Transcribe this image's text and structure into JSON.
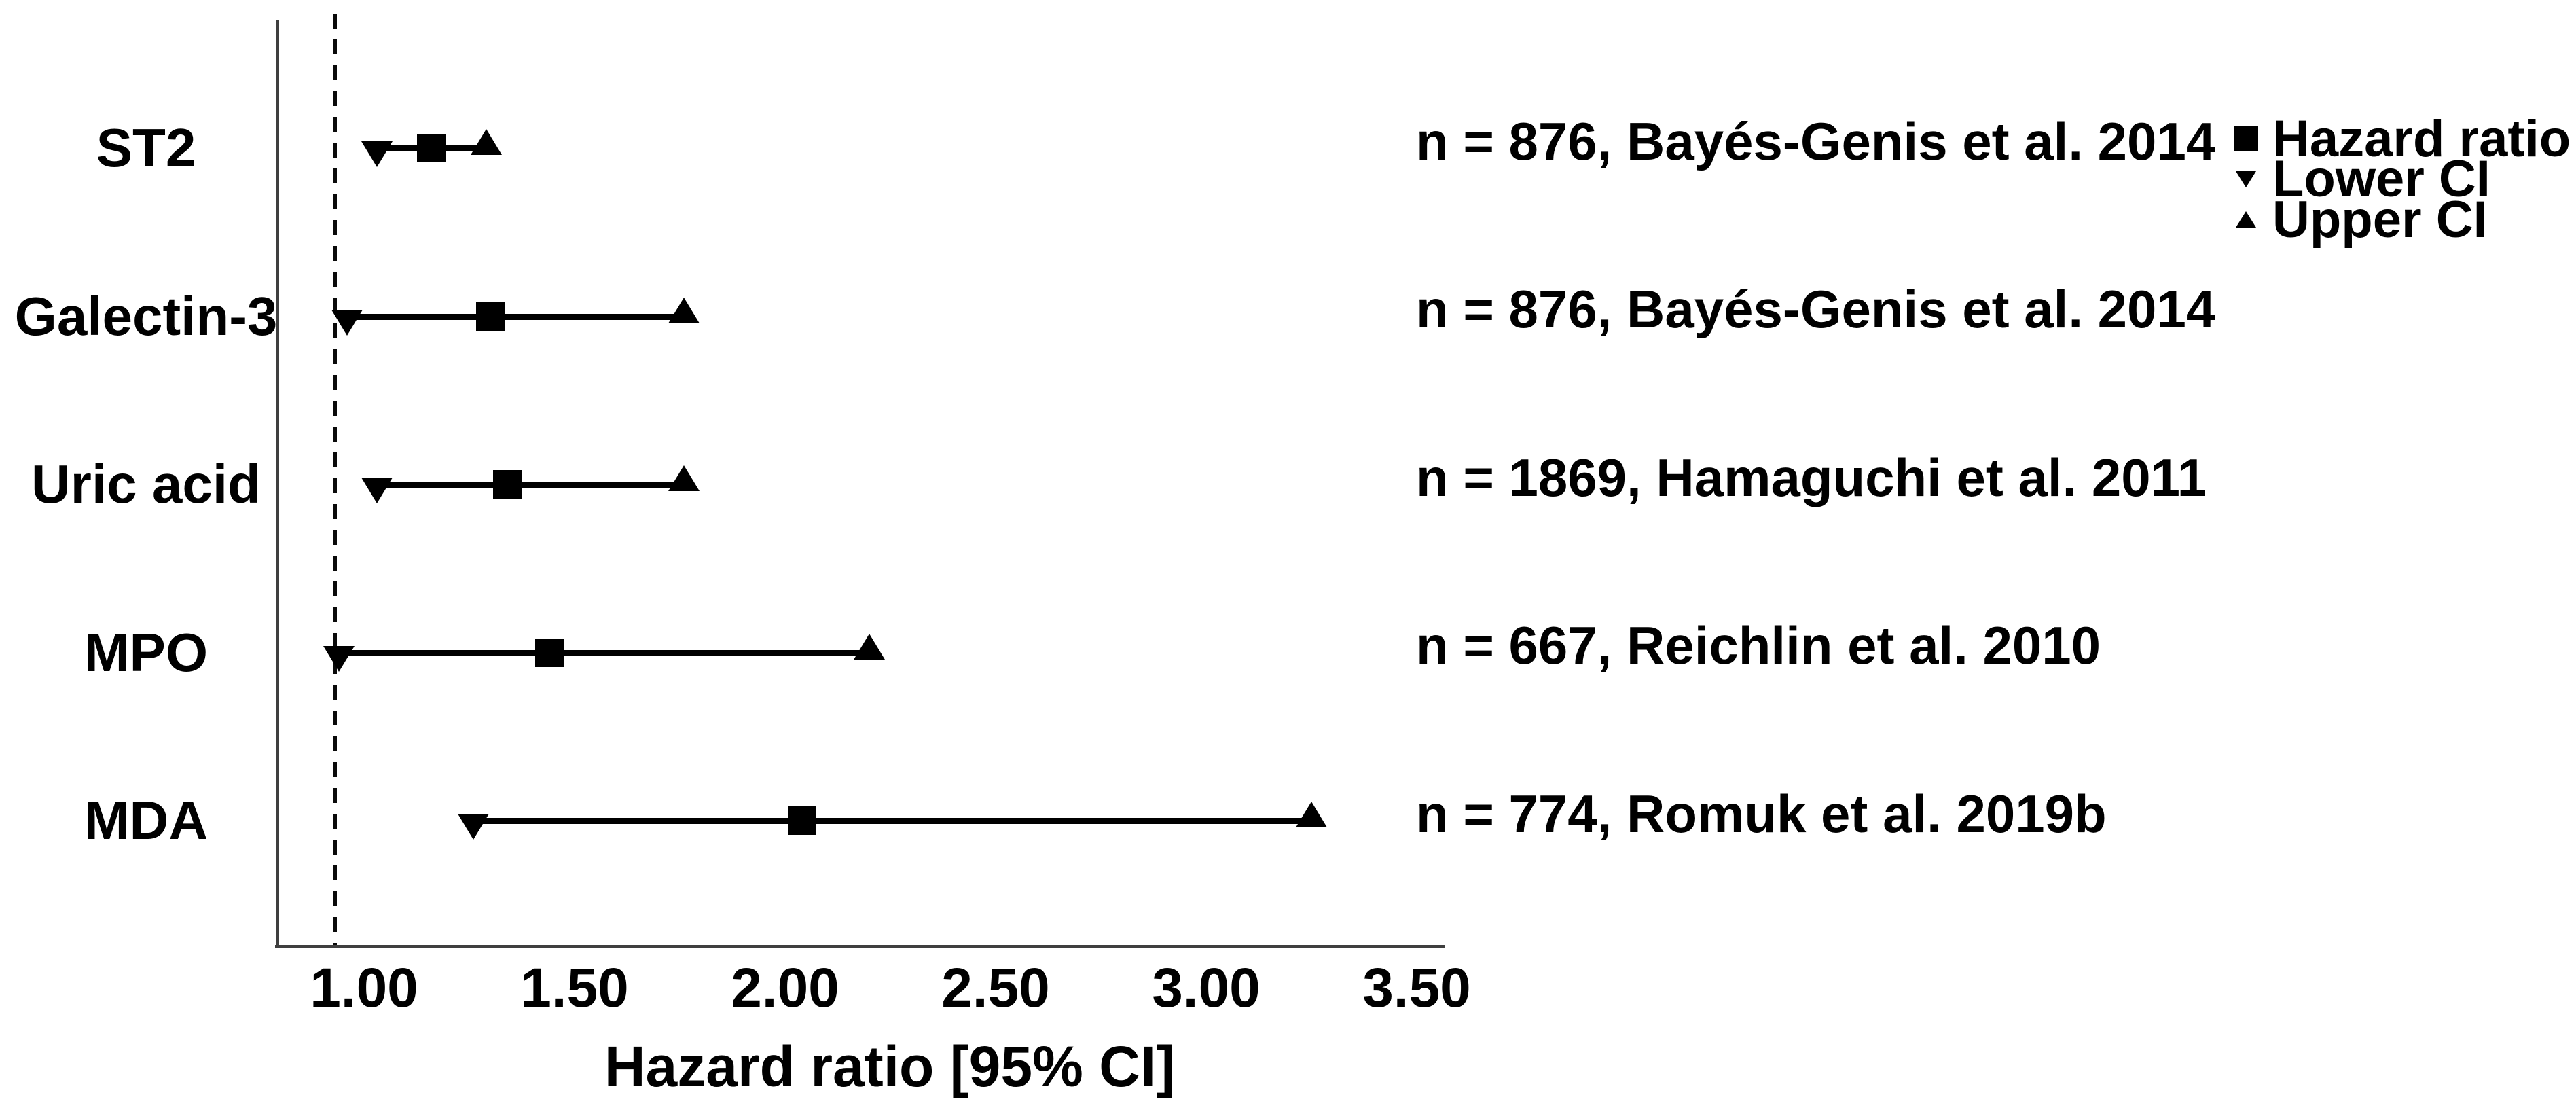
{
  "chart_data": {
    "type": "scatter",
    "subtype": "forest-plot",
    "title": "",
    "xlabel": "Hazard ratio [95% CI]",
    "ylabel": "",
    "x_ticks": [
      1.0,
      1.5,
      2.0,
      2.5,
      3.0,
      3.5
    ],
    "x_tick_labels": [
      "1.00",
      "1.50",
      "2.00",
      "2.50",
      "3.00",
      "3.50"
    ],
    "xlim": [
      0.79,
      3.57
    ],
    "reference_line": 0.93,
    "grid": false,
    "legend_position": "top-right",
    "legend": [
      {
        "marker": "square",
        "label": "Hazard ratio"
      },
      {
        "marker": "triangle-down",
        "label": "Lower CI"
      },
      {
        "marker": "triangle-up",
        "label": "Upper CI"
      }
    ],
    "rows": [
      {
        "label": "ST2",
        "hr": 1.16,
        "lower": 1.03,
        "upper": 1.29,
        "annotation": "n = 876, Bayés-Genis et al. 2014"
      },
      {
        "label": "Galectin-3",
        "hr": 1.3,
        "lower": 0.96,
        "upper": 1.76,
        "annotation": "n = 876, Bayés-Genis et al. 2014"
      },
      {
        "label": "Uric acid",
        "hr": 1.34,
        "lower": 1.03,
        "upper": 1.76,
        "annotation": "n = 1869, Hamaguchi et al. 2011"
      },
      {
        "label": "MPO",
        "hr": 1.44,
        "lower": 0.94,
        "upper": 2.2,
        "annotation": "n = 667, Reichlin et al. 2010"
      },
      {
        "label": "MDA",
        "hr": 2.04,
        "lower": 1.26,
        "upper": 3.25,
        "annotation": "n = 774, Romuk et al. 2019b"
      }
    ]
  }
}
